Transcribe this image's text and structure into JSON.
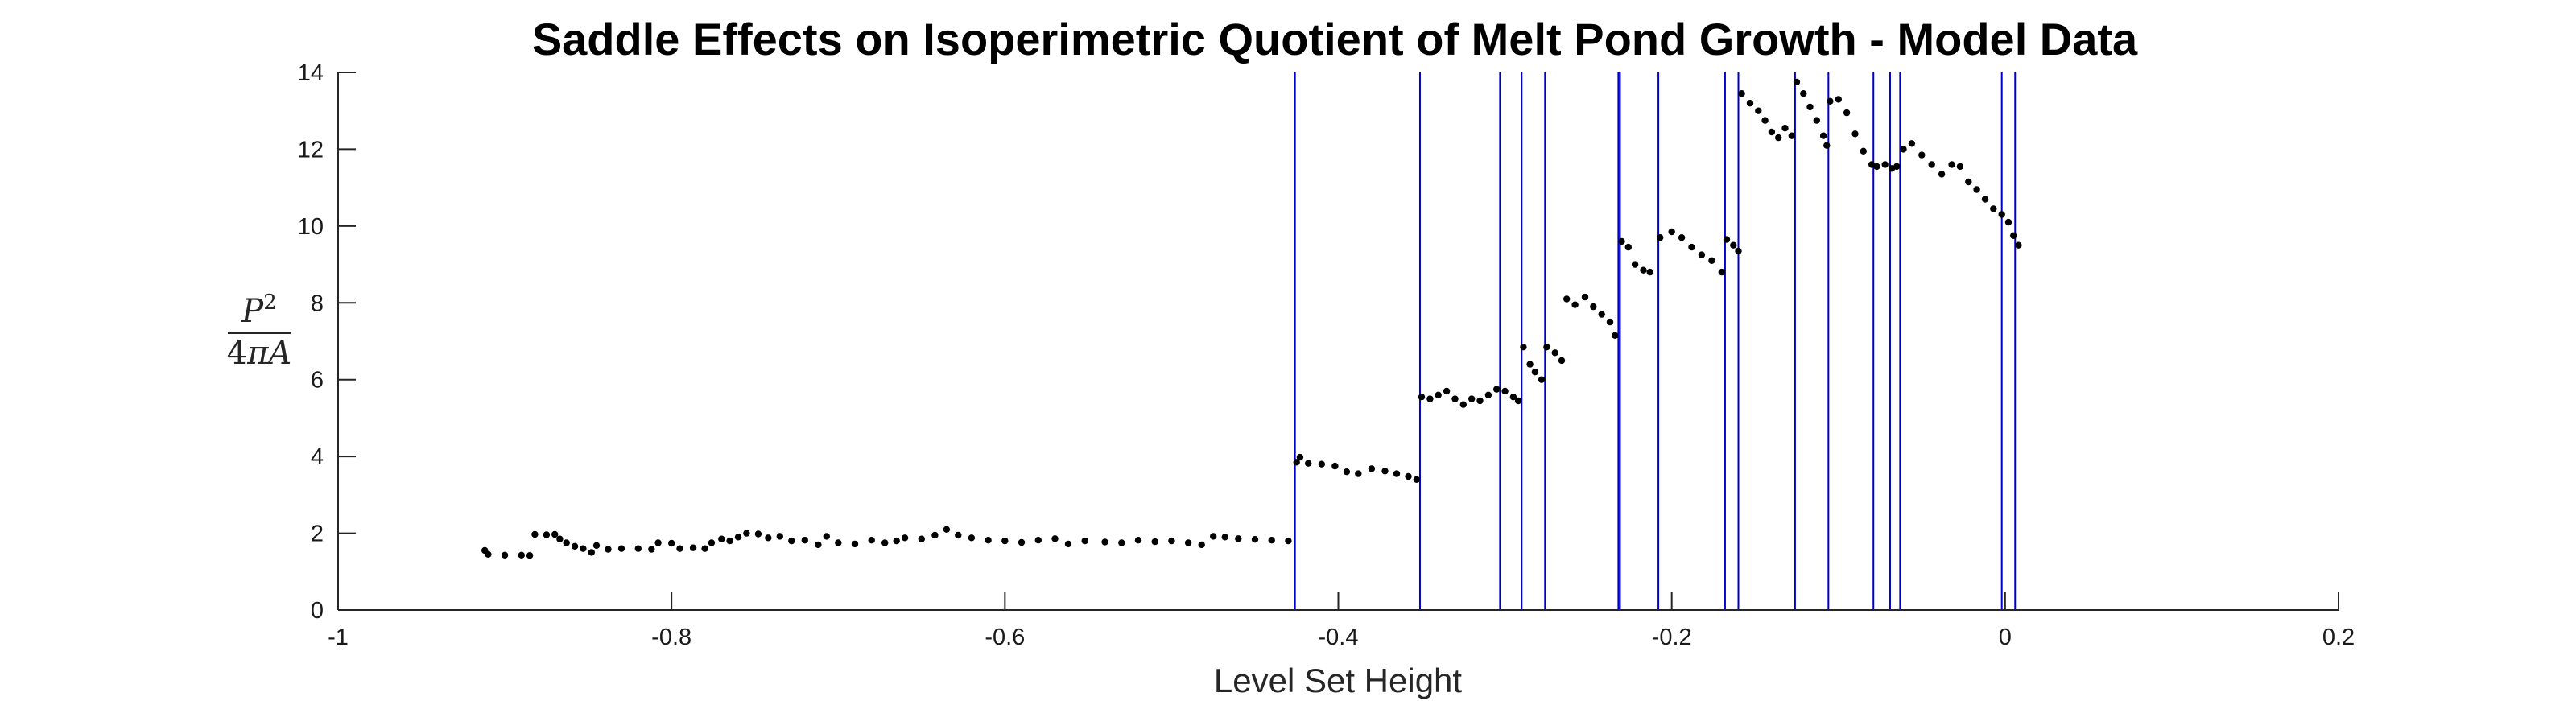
{
  "chart_data": {
    "type": "scatter",
    "title": "Saddle Effects on Isoperimetric Quotient of Melt Pond Growth - Model Data",
    "xlabel": "Level Set Height",
    "ylabel": {
      "p": "P",
      "exp": "2",
      "den_num": "4",
      "den_pi": "π",
      "den_a": "A"
    },
    "xlim": [
      -1,
      0.2
    ],
    "ylim": [
      0,
      14
    ],
    "xticks": [
      -1,
      -0.8,
      -0.6,
      -0.4,
      -0.2,
      0,
      0.2
    ],
    "xtick_labels": [
      "-1",
      "-0.8",
      "-0.6",
      "-0.4",
      "-0.2",
      "0",
      "0.2"
    ],
    "yticks": [
      0,
      2,
      4,
      6,
      8,
      10,
      12,
      14
    ],
    "ytick_labels": [
      "0",
      "2",
      "4",
      "6",
      "8",
      "10",
      "12",
      "14"
    ],
    "grid": false,
    "saddle_lines": [
      -0.426,
      -0.351,
      -0.303,
      -0.29,
      -0.276,
      -0.232,
      -0.231,
      -0.208,
      -0.168,
      -0.16,
      -0.126,
      -0.106,
      -0.079,
      -0.069,
      -0.063,
      -0.002,
      0.006
    ],
    "colors": {
      "points": "#000000",
      "lines": "#0000c8",
      "axes": "#262626"
    },
    "series": [
      {
        "values": [
          [
            -0.912,
            1.55
          ],
          [
            -0.91,
            1.45
          ],
          [
            -0.9,
            1.43
          ],
          [
            -0.89,
            1.43
          ],
          [
            -0.885,
            1.42
          ],
          [
            -0.882,
            1.97
          ],
          [
            -0.875,
            1.96
          ],
          [
            -0.87,
            1.97
          ],
          [
            -0.867,
            1.85
          ],
          [
            -0.863,
            1.75
          ],
          [
            -0.858,
            1.66
          ],
          [
            -0.853,
            1.6
          ],
          [
            -0.848,
            1.5
          ],
          [
            -0.845,
            1.68
          ],
          [
            -0.838,
            1.58
          ],
          [
            -0.83,
            1.6
          ],
          [
            -0.82,
            1.6
          ],
          [
            -0.812,
            1.58
          ],
          [
            -0.808,
            1.75
          ],
          [
            -0.8,
            1.74
          ],
          [
            -0.795,
            1.6
          ],
          [
            -0.787,
            1.62
          ],
          [
            -0.78,
            1.6
          ],
          [
            -0.776,
            1.75
          ],
          [
            -0.77,
            1.85
          ],
          [
            -0.765,
            1.8
          ],
          [
            -0.76,
            1.9
          ],
          [
            -0.755,
            2.0
          ],
          [
            -0.748,
            1.98
          ],
          [
            -0.742,
            1.88
          ],
          [
            -0.735,
            1.92
          ],
          [
            -0.728,
            1.8
          ],
          [
            -0.72,
            1.82
          ],
          [
            -0.712,
            1.7
          ],
          [
            -0.707,
            1.92
          ],
          [
            -0.7,
            1.75
          ],
          [
            -0.69,
            1.72
          ],
          [
            -0.68,
            1.82
          ],
          [
            -0.672,
            1.75
          ],
          [
            -0.665,
            1.8
          ],
          [
            -0.66,
            1.88
          ],
          [
            -0.65,
            1.85
          ],
          [
            -0.642,
            1.95
          ],
          [
            -0.635,
            2.1
          ],
          [
            -0.628,
            1.95
          ],
          [
            -0.62,
            1.88
          ],
          [
            -0.61,
            1.82
          ],
          [
            -0.6,
            1.8
          ],
          [
            -0.59,
            1.76
          ],
          [
            -0.58,
            1.82
          ],
          [
            -0.57,
            1.86
          ],
          [
            -0.562,
            1.72
          ],
          [
            -0.552,
            1.8
          ],
          [
            -0.54,
            1.77
          ],
          [
            -0.53,
            1.75
          ],
          [
            -0.52,
            1.82
          ],
          [
            -0.51,
            1.78
          ],
          [
            -0.5,
            1.8
          ],
          [
            -0.49,
            1.75
          ],
          [
            -0.482,
            1.7
          ],
          [
            -0.475,
            1.92
          ],
          [
            -0.468,
            1.9
          ],
          [
            -0.46,
            1.86
          ],
          [
            -0.45,
            1.84
          ],
          [
            -0.44,
            1.82
          ],
          [
            -0.43,
            1.8
          ],
          [
            -0.425,
            3.85
          ],
          [
            -0.423,
            3.98
          ],
          [
            -0.418,
            3.82
          ],
          [
            -0.41,
            3.8
          ],
          [
            -0.402,
            3.75
          ],
          [
            -0.395,
            3.6
          ],
          [
            -0.388,
            3.55
          ],
          [
            -0.38,
            3.68
          ],
          [
            -0.372,
            3.62
          ],
          [
            -0.365,
            3.55
          ],
          [
            -0.358,
            3.48
          ],
          [
            -0.353,
            3.4
          ],
          [
            -0.35,
            5.55
          ],
          [
            -0.345,
            5.5
          ],
          [
            -0.34,
            5.6
          ],
          [
            -0.335,
            5.7
          ],
          [
            -0.33,
            5.5
          ],
          [
            -0.325,
            5.35
          ],
          [
            -0.32,
            5.5
          ],
          [
            -0.315,
            5.45
          ],
          [
            -0.31,
            5.6
          ],
          [
            -0.305,
            5.75
          ],
          [
            -0.3,
            5.7
          ],
          [
            -0.295,
            5.55
          ],
          [
            -0.292,
            5.45
          ],
          [
            -0.289,
            6.85
          ],
          [
            -0.285,
            6.4
          ],
          [
            -0.282,
            6.2
          ],
          [
            -0.278,
            6.0
          ],
          [
            -0.275,
            6.85
          ],
          [
            -0.27,
            6.7
          ],
          [
            -0.266,
            6.5
          ],
          [
            -0.263,
            8.1
          ],
          [
            -0.258,
            7.95
          ],
          [
            -0.252,
            8.15
          ],
          [
            -0.247,
            7.9
          ],
          [
            -0.242,
            7.7
          ],
          [
            -0.237,
            7.5
          ],
          [
            -0.234,
            7.15
          ],
          [
            -0.23,
            9.6
          ],
          [
            -0.226,
            9.45
          ],
          [
            -0.222,
            9.0
          ],
          [
            -0.217,
            8.85
          ],
          [
            -0.213,
            8.8
          ],
          [
            -0.207,
            9.7
          ],
          [
            -0.2,
            9.85
          ],
          [
            -0.194,
            9.7
          ],
          [
            -0.188,
            9.45
          ],
          [
            -0.182,
            9.25
          ],
          [
            -0.176,
            9.1
          ],
          [
            -0.17,
            8.8
          ],
          [
            -0.167,
            9.65
          ],
          [
            -0.163,
            9.5
          ],
          [
            -0.16,
            9.35
          ],
          [
            -0.158,
            13.45
          ],
          [
            -0.153,
            13.2
          ],
          [
            -0.148,
            13.0
          ],
          [
            -0.144,
            12.75
          ],
          [
            -0.14,
            12.45
          ],
          [
            -0.136,
            12.3
          ],
          [
            -0.132,
            12.55
          ],
          [
            -0.128,
            12.35
          ],
          [
            -0.125,
            13.75
          ],
          [
            -0.121,
            13.45
          ],
          [
            -0.117,
            13.1
          ],
          [
            -0.113,
            12.75
          ],
          [
            -0.109,
            12.35
          ],
          [
            -0.107,
            12.1
          ],
          [
            -0.105,
            13.25
          ],
          [
            -0.1,
            13.3
          ],
          [
            -0.095,
            12.95
          ],
          [
            -0.09,
            12.4
          ],
          [
            -0.085,
            11.95
          ],
          [
            -0.08,
            11.6
          ],
          [
            -0.077,
            11.55
          ],
          [
            -0.072,
            11.6
          ],
          [
            -0.068,
            11.5
          ],
          [
            -0.065,
            11.55
          ],
          [
            -0.061,
            12.0
          ],
          [
            -0.056,
            12.15
          ],
          [
            -0.05,
            11.85
          ],
          [
            -0.044,
            11.6
          ],
          [
            -0.038,
            11.35
          ],
          [
            -0.032,
            11.6
          ],
          [
            -0.027,
            11.55
          ],
          [
            -0.022,
            11.15
          ],
          [
            -0.017,
            10.95
          ],
          [
            -0.012,
            10.7
          ],
          [
            -0.007,
            10.45
          ],
          [
            -0.002,
            10.3
          ],
          [
            0.002,
            10.1
          ],
          [
            0.005,
            9.75
          ],
          [
            0.008,
            9.5
          ]
        ]
      }
    ]
  }
}
